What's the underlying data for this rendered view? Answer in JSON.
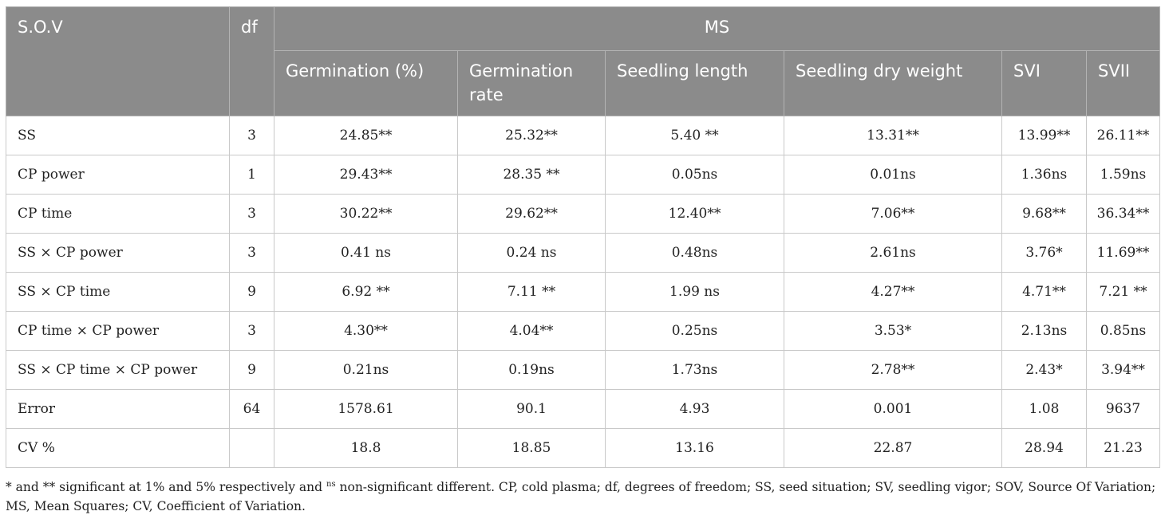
{
  "table": {
    "header": {
      "sov": "S.O.V",
      "df": "df",
      "ms": "MS",
      "columns": [
        "Germination (%)",
        "Germination rate",
        "Seedling length",
        "Seedling dry weight",
        "SVI",
        "SVII"
      ]
    },
    "rows": [
      {
        "sov": "SS",
        "df": "3",
        "values": [
          "24.85**",
          "25.32**",
          "5.40 **",
          "13.31**",
          "13.99**",
          "26.11**"
        ]
      },
      {
        "sov": "CP power",
        "df": "1",
        "values": [
          "29.43**",
          "28.35 **",
          "0.05ns",
          "0.01ns",
          "1.36ns",
          "1.59ns"
        ]
      },
      {
        "sov": "CP time",
        "df": "3",
        "values": [
          "30.22**",
          "29.62**",
          "12.40**",
          "7.06**",
          "9.68**",
          "36.34**"
        ]
      },
      {
        "sov": "SS × CP power",
        "df": "3",
        "values": [
          "0.41 ns",
          "0.24 ns",
          "0.48ns",
          "2.61ns",
          "3.76*",
          "11.69**"
        ]
      },
      {
        "sov": "SS × CP time",
        "df": "9",
        "values": [
          "6.92 **",
          "7.11 **",
          "1.99 ns",
          "4.27**",
          "4.71**",
          "7.21 **"
        ]
      },
      {
        "sov": "CP time × CP power",
        "df": "3",
        "values": [
          "4.30**",
          "4.04**",
          "0.25ns",
          "3.53*",
          "2.13ns",
          "0.85ns"
        ]
      },
      {
        "sov": "SS × CP time × CP power",
        "df": "9",
        "values": [
          "0.21ns",
          "0.19ns",
          "1.73ns",
          "2.78**",
          "2.43*",
          "3.94**"
        ]
      },
      {
        "sov": "Error",
        "df": "64",
        "values": [
          "1578.61",
          "90.1",
          "4.93",
          "0.001",
          "1.08",
          "9637"
        ]
      },
      {
        "sov": "CV %",
        "df": "",
        "values": [
          "18.8",
          "18.85",
          "13.16",
          "22.87",
          "28.94",
          "21.23"
        ]
      }
    ]
  },
  "footnote": {
    "part1": "* and ** significant at 1% and 5% respectively and ",
    "sup": "ns",
    "part2": " non-significant different. CP, cold plasma; df, degrees of freedom; SS, seed situation; SV, seedling vigor; SOV, Source Of Variation; MS, Mean Squares; CV, Coefficient of Variation."
  }
}
